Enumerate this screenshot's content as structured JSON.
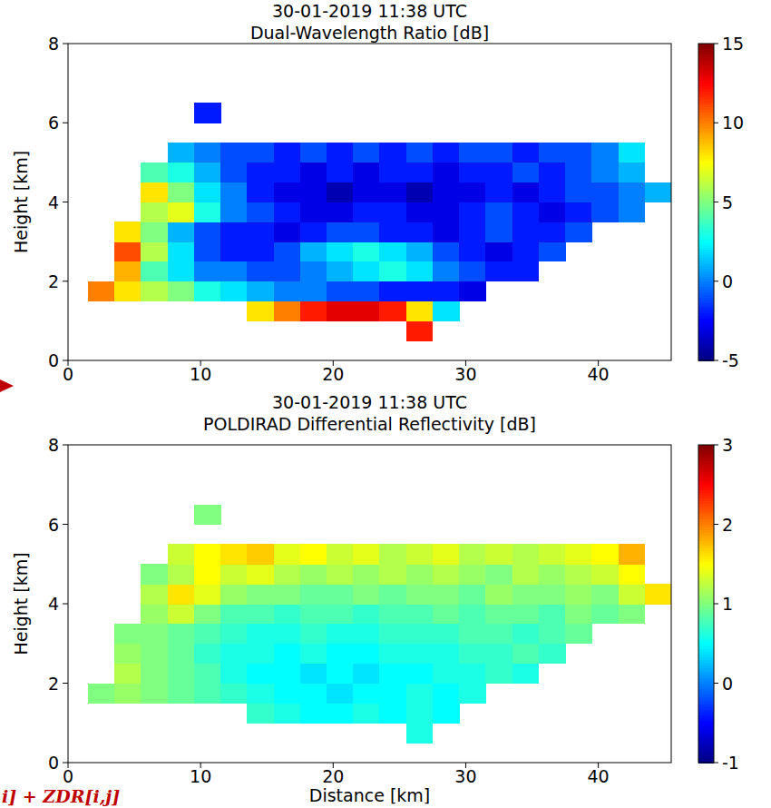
{
  "chart_data": [
    {
      "type": "heatmap",
      "title": "30-01-2019 11:38 UTC",
      "subtitle": "Dual-Wavelength Ratio [dB]",
      "y_label": "Height [km]",
      "xlim": [
        0,
        45.5
      ],
      "xticks": [
        0,
        10,
        20,
        30,
        40
      ],
      "ylim": [
        0,
        8
      ],
      "yticks": [
        0,
        2,
        4,
        6,
        8
      ],
      "grid": false,
      "x_edges": [
        1.5,
        3.5,
        5.5,
        7.5,
        9.5,
        11.5,
        13.5,
        15.5,
        17.5,
        19.5,
        21.5,
        23.5,
        25.5,
        27.5,
        29.5,
        31.5,
        33.5,
        35.5,
        37.5,
        39.5,
        41.5,
        43.5,
        45.5
      ],
      "y_edges": [
        0.5,
        1.0,
        1.5,
        2.0,
        2.5,
        3.0,
        3.5,
        4.0,
        4.5,
        5.0,
        5.5,
        6.0,
        6.5
      ],
      "cells": [
        [
          null,
          null,
          null,
          null,
          null,
          null,
          null,
          null,
          null,
          null,
          null,
          null,
          12,
          null,
          null,
          null,
          null,
          null,
          null,
          null,
          null,
          null
        ],
        [
          null,
          null,
          null,
          null,
          null,
          null,
          8,
          10,
          12,
          13,
          13,
          12,
          8,
          2,
          null,
          null,
          null,
          null,
          null,
          null,
          null,
          null
        ],
        [
          10,
          8,
          6,
          5,
          3,
          2,
          1,
          0,
          0,
          -1,
          -1,
          -2,
          -2,
          -2,
          -3,
          null,
          null,
          null,
          null,
          null,
          null,
          null
        ],
        [
          null,
          9,
          4,
          2,
          0,
          0,
          -1,
          -1,
          0,
          1,
          2,
          3,
          2,
          0,
          -1,
          -2,
          -2,
          null,
          null,
          null,
          null,
          null
        ],
        [
          null,
          11,
          6,
          2,
          -1,
          -2,
          -2,
          -1,
          1,
          2,
          3,
          2,
          1,
          -1,
          -2,
          -3,
          -2,
          -1,
          null,
          null,
          null,
          null
        ],
        [
          null,
          8,
          5,
          1,
          -1,
          -2,
          -2,
          -3,
          -2,
          -1,
          -1,
          -2,
          -2,
          -3,
          -2,
          -1,
          -2,
          -2,
          -1,
          null,
          null,
          null
        ],
        [
          null,
          null,
          6,
          7,
          3,
          0,
          -1,
          -2,
          -3,
          -3,
          -2,
          -2,
          -3,
          -3,
          -2,
          -1,
          -2,
          -3,
          -2,
          -1,
          0,
          null
        ],
        [
          null,
          null,
          8,
          5,
          2,
          0,
          -2,
          -3,
          -3,
          -4,
          -3,
          -3,
          -4,
          -3,
          -3,
          -2,
          -3,
          -2,
          -1,
          -1,
          0,
          1
        ],
        [
          null,
          null,
          4,
          3,
          1,
          -1,
          -2,
          -2,
          -3,
          -2,
          -3,
          -2,
          -2,
          -3,
          -2,
          -2,
          -1,
          -2,
          -1,
          0,
          1,
          null
        ],
        [
          null,
          null,
          null,
          1,
          0,
          -1,
          -1,
          -2,
          -1,
          -2,
          -1,
          -2,
          -1,
          -2,
          -1,
          -1,
          -2,
          -1,
          -1,
          0,
          2,
          null
        ],
        [
          null,
          null,
          null,
          null,
          null,
          null,
          null,
          null,
          null,
          null,
          null,
          null,
          null,
          null,
          null,
          null,
          null,
          null,
          null,
          null,
          null,
          null
        ],
        [
          null,
          null,
          null,
          null,
          -2,
          null,
          null,
          null,
          null,
          null,
          null,
          null,
          null,
          null,
          null,
          null,
          null,
          null,
          null,
          null,
          null,
          null
        ]
      ],
      "color_range": [
        -5,
        15
      ],
      "color_ticks": [
        -5,
        0,
        5,
        10,
        15
      ]
    },
    {
      "type": "heatmap",
      "title": "30-01-2019 11:38 UTC",
      "subtitle": "POLDIRAD Differential Reflectivity [dB]",
      "x_label": "Distance [km]",
      "y_label": "Height [km]",
      "xlim": [
        0,
        45.5
      ],
      "xticks": [
        0,
        10,
        20,
        30,
        40
      ],
      "ylim": [
        0,
        8
      ],
      "yticks": [
        0,
        2,
        4,
        6,
        8
      ],
      "grid": false,
      "x_edges": [
        1.5,
        3.5,
        5.5,
        7.5,
        9.5,
        11.5,
        13.5,
        15.5,
        17.5,
        19.5,
        21.5,
        23.5,
        25.5,
        27.5,
        29.5,
        31.5,
        33.5,
        35.5,
        37.5,
        39.5,
        41.5,
        43.5,
        45.5
      ],
      "y_edges": [
        0.5,
        1.0,
        1.5,
        2.0,
        2.5,
        3.0,
        3.5,
        4.0,
        4.5,
        5.0,
        5.5,
        6.0,
        6.5
      ],
      "cells": [
        [
          null,
          null,
          null,
          null,
          null,
          null,
          null,
          null,
          null,
          null,
          null,
          null,
          0.6,
          null,
          null,
          null,
          null,
          null,
          null,
          null,
          null,
          null
        ],
        [
          null,
          null,
          null,
          null,
          null,
          null,
          0.7,
          0.6,
          0.5,
          0.5,
          0.6,
          0.5,
          0.6,
          0.5,
          null,
          null,
          null,
          null,
          null,
          null,
          null,
          null
        ],
        [
          1.0,
          1.1,
          1.0,
          0.9,
          0.8,
          0.7,
          0.6,
          0.5,
          0.5,
          0.4,
          0.5,
          0.5,
          0.6,
          0.5,
          0.6,
          null,
          null,
          null,
          null,
          null,
          null,
          null
        ],
        [
          null,
          1.2,
          1.0,
          0.9,
          0.8,
          0.6,
          0.5,
          0.5,
          0.4,
          0.5,
          0.4,
          0.5,
          0.5,
          0.6,
          0.6,
          0.7,
          0.6,
          null,
          null,
          null,
          null,
          null
        ],
        [
          null,
          1.1,
          1.0,
          0.9,
          0.7,
          0.6,
          0.6,
          0.5,
          0.6,
          0.5,
          0.5,
          0.6,
          0.6,
          0.6,
          0.7,
          0.7,
          0.8,
          0.7,
          null,
          null,
          null,
          null
        ],
        [
          null,
          1.0,
          1.0,
          0.9,
          0.8,
          0.7,
          0.6,
          0.6,
          0.7,
          0.6,
          0.6,
          0.7,
          0.7,
          0.7,
          0.8,
          0.8,
          0.7,
          0.8,
          0.9,
          null,
          null,
          null
        ],
        [
          null,
          null,
          1.1,
          1.3,
          1.0,
          0.8,
          0.8,
          0.7,
          0.8,
          0.8,
          0.7,
          0.8,
          0.8,
          0.9,
          0.8,
          0.9,
          0.9,
          0.8,
          1.0,
          0.9,
          1.0,
          null
        ],
        [
          null,
          null,
          1.2,
          1.6,
          1.4,
          1.1,
          1.0,
          1.0,
          0.9,
          0.9,
          1.0,
          0.9,
          1.0,
          1.0,
          0.9,
          1.1,
          1.0,
          1.0,
          1.1,
          1.0,
          1.3,
          1.6
        ],
        [
          null,
          null,
          1.0,
          1.2,
          1.5,
          1.3,
          1.4,
          1.2,
          1.1,
          1.2,
          1.1,
          1.2,
          1.1,
          1.2,
          1.1,
          1.0,
          1.2,
          1.1,
          1.2,
          1.3,
          1.5,
          null
        ],
        [
          null,
          null,
          null,
          1.3,
          1.5,
          1.6,
          1.7,
          1.4,
          1.5,
          1.3,
          1.4,
          1.2,
          1.3,
          1.4,
          1.2,
          1.3,
          1.2,
          1.3,
          1.4,
          1.5,
          1.8,
          null
        ],
        [
          null,
          null,
          null,
          null,
          null,
          null,
          null,
          null,
          null,
          null,
          null,
          null,
          null,
          null,
          null,
          null,
          null,
          null,
          null,
          null,
          null,
          null
        ],
        [
          null,
          null,
          null,
          null,
          1.0,
          null,
          null,
          null,
          null,
          null,
          null,
          null,
          null,
          null,
          null,
          null,
          null,
          null,
          null,
          null,
          null,
          null
        ]
      ],
      "color_range": [
        -1,
        3
      ],
      "color_ticks": [
        -1,
        0,
        1,
        2,
        3
      ],
      "annotation": "i] + ZDR[i,j]"
    }
  ]
}
